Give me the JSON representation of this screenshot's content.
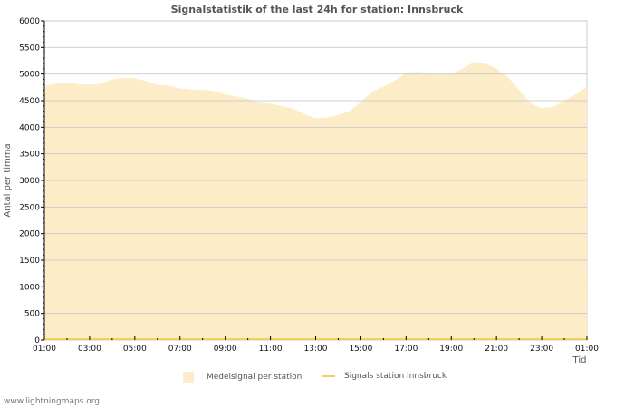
{
  "title": "Signalstatistik of the last 24h for station: Innsbruck",
  "footer": "www.lightningmaps.org",
  "legend": {
    "area_label": "Medelsignal per station",
    "line_label": "Signals station Innsbruck"
  },
  "colors": {
    "area_fill": "#fdecc8",
    "line": "#f5cf5b",
    "grid": "#c8c8c8",
    "grid_in_area": "#e0cfa8"
  },
  "chart_data": {
    "type": "area",
    "title": "Signalstatistik of the last 24h for station: Innsbruck",
    "xlabel": "Tid",
    "ylabel": "Antal per timma",
    "ylim": [
      0,
      6000
    ],
    "yticks": [
      0,
      500,
      1000,
      1500,
      2000,
      2500,
      3000,
      3500,
      4000,
      4500,
      5000,
      5500,
      6000
    ],
    "xticks": [
      "01:00",
      "03:00",
      "05:00",
      "07:00",
      "09:00",
      "11:00",
      "13:00",
      "15:00",
      "17:00",
      "19:00",
      "21:00",
      "23:00",
      "01:00"
    ],
    "grid": true,
    "legend_position": "bottom",
    "series": [
      {
        "name": "Medelsignal per station",
        "type": "area",
        "x_hours": [
          0,
          0.5,
          1,
          1.5,
          2,
          2.5,
          3,
          3.5,
          4,
          4.5,
          5,
          5.5,
          6,
          6.5,
          7,
          7.5,
          8,
          8.5,
          9,
          9.5,
          10,
          10.5,
          11,
          11.5,
          12,
          12.5,
          13,
          13.5,
          14,
          14.5,
          15,
          15.5,
          16,
          16.5,
          17,
          17.5,
          18,
          18.5,
          19,
          19.5,
          20,
          20.5,
          21,
          21.5,
          22,
          22.5,
          23,
          23.5,
          24
        ],
        "values": [
          4780,
          4820,
          4840,
          4810,
          4800,
          4820,
          4900,
          4930,
          4920,
          4870,
          4800,
          4780,
          4730,
          4710,
          4700,
          4680,
          4620,
          4580,
          4540,
          4460,
          4440,
          4400,
          4350,
          4250,
          4170,
          4180,
          4230,
          4300,
          4480,
          4670,
          4760,
          4880,
          5020,
          5040,
          5020,
          5000,
          5000,
          5100,
          5230,
          5200,
          5100,
          4950,
          4700,
          4450,
          4360,
          4380,
          4500,
          4620,
          4760
        ]
      },
      {
        "name": "Signals station Innsbruck",
        "type": "line",
        "values_note": "flat at 0",
        "x_hours": [
          0,
          24
        ],
        "values": [
          0,
          0
        ]
      }
    ]
  }
}
